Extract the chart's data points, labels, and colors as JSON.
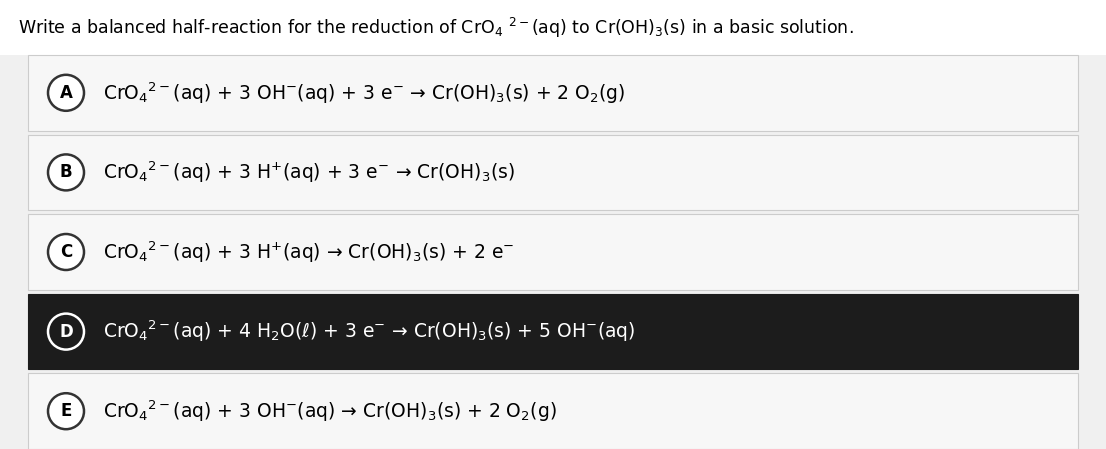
{
  "background_color": "#f0f0f0",
  "title_bg": "#ffffff",
  "title_text": "Write a balanced half-reaction for the reduction of CrO$_4$ $^{2-}$(aq) to Cr(OH)$_3$(s) in a basic solution.",
  "options": [
    {
      "label": "A",
      "eq": "CrO$_4$$^{2-}$(aq) + 3 OH$^{-}$(aq) + 3 e$^{-}$ → Cr(OH)$_3$(s) + 2 O$_2$(g)",
      "highlight": false
    },
    {
      "label": "B",
      "eq": "CrO$_4$$^{2-}$(aq) + 3 H$^{+}$(aq) + 3 e$^{-}$ → Cr(OH)$_3$(s)",
      "highlight": false
    },
    {
      "label": "C",
      "eq": "CrO$_4$$^{2-}$(aq) + 3 H$^{+}$(aq) → Cr(OH)$_3$(s) + 2 e$^{-}$",
      "highlight": false
    },
    {
      "label": "D",
      "eq": "CrO$_4$$^{2-}$(aq) + 4 H$_2$O($\\ell$) + 3 e$^{-}$ → Cr(OH)$_3$(s) + 5 OH$^{-}$(aq)",
      "highlight": true
    },
    {
      "label": "E",
      "eq": "CrO$_4$$^{2-}$(aq) + 3 OH$^{-}$(aq) → Cr(OH)$_3$(s) + 2 O$_2$(g)",
      "highlight": false
    }
  ],
  "fig_width": 11.06,
  "fig_height": 4.49,
  "dpi": 100,
  "title_fontsize": 12.5,
  "eq_fontsize": 13.5,
  "label_fontsize": 12
}
